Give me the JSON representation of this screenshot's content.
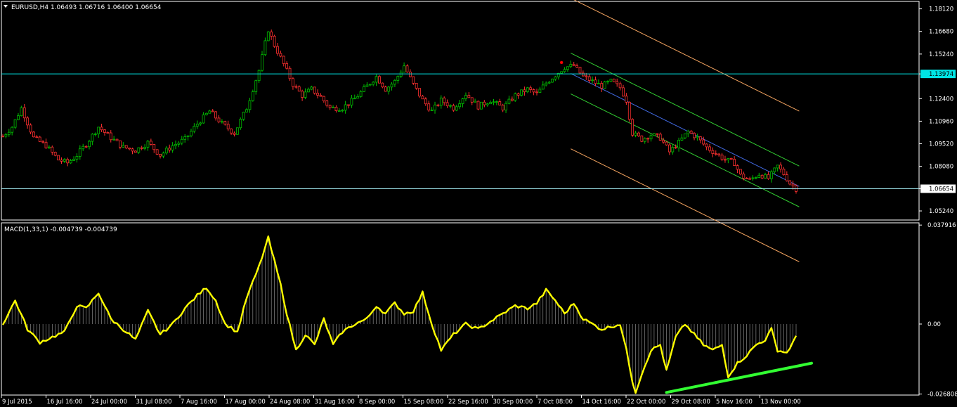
{
  "chart_data": [
    {
      "type": "candlestick",
      "title": "EURUSD,H4 1.06493 1.06716 1.06400 1.06654",
      "ylim": [
        1.0466,
        1.1855
      ],
      "y_ticks": [
        "1.18120",
        "1.16680",
        "1.15240",
        "1.13974",
        "1.12400",
        "1.10960",
        "1.09520",
        "1.08080",
        "1.06654",
        "1.05240"
      ],
      "price_levels": {
        "resistance": 1.13974,
        "last": 1.06654
      },
      "highlight_labels": [
        "1.13974",
        "1.06654"
      ],
      "x_ticks": [
        "9 Jul 2015",
        "16 Jul 16:00",
        "24 Jul 00:00",
        "31 Jul 08:00",
        "7 Aug 16:00",
        "17 Aug 00:00",
        "24 Aug 08:00",
        "31 Aug 16:00",
        "8 Sep 00:00",
        "15 Sep 08:00",
        "22 Sep 16:00",
        "30 Sep 00:00",
        "7 Oct 08:00",
        "14 Oct 16:00",
        "22 Oct 00:00",
        "29 Oct 08:00",
        "5 Nov 16:00",
        "13 Nov 00:00"
      ],
      "close_path": [
        [
          0,
          1.1
        ],
        [
          3,
          1.106
        ],
        [
          6,
          1.118
        ],
        [
          10,
          1.099
        ],
        [
          14,
          1.094
        ],
        [
          18,
          1.085
        ],
        [
          21,
          1.083
        ],
        [
          24,
          1.088
        ],
        [
          27,
          1.095
        ],
        [
          31,
          1.106
        ],
        [
          35,
          1.099
        ],
        [
          39,
          1.093
        ],
        [
          43,
          1.091
        ],
        [
          47,
          1.096
        ],
        [
          51,
          1.088
        ],
        [
          55,
          1.094
        ],
        [
          59,
          1.098
        ],
        [
          63,
          1.108
        ],
        [
          67,
          1.116
        ],
        [
          71,
          1.108
        ],
        [
          75,
          1.102
        ],
        [
          79,
          1.118
        ],
        [
          83,
          1.142
        ],
        [
          86,
          1.168
        ],
        [
          88,
          1.158
        ],
        [
          91,
          1.146
        ],
        [
          94,
          1.133
        ],
        [
          97,
          1.126
        ],
        [
          100,
          1.13
        ],
        [
          103,
          1.125
        ],
        [
          106,
          1.118
        ],
        [
          110,
          1.118
        ],
        [
          114,
          1.124
        ],
        [
          118,
          1.132
        ],
        [
          121,
          1.138
        ],
        [
          124,
          1.13
        ],
        [
          127,
          1.135
        ],
        [
          130,
          1.145
        ],
        [
          133,
          1.133
        ],
        [
          136,
          1.123
        ],
        [
          139,
          1.116
        ],
        [
          142,
          1.123
        ],
        [
          146,
          1.118
        ],
        [
          150,
          1.127
        ],
        [
          154,
          1.119
        ],
        [
          158,
          1.123
        ],
        [
          162,
          1.118
        ],
        [
          166,
          1.126
        ],
        [
          170,
          1.13
        ],
        [
          173,
          1.127
        ],
        [
          176,
          1.134
        ],
        [
          179,
          1.139
        ],
        [
          182,
          1.144
        ],
        [
          185,
          1.145
        ],
        [
          188,
          1.138
        ],
        [
          191,
          1.135
        ],
        [
          194,
          1.132
        ],
        [
          197,
          1.135
        ],
        [
          200,
          1.131
        ],
        [
          202,
          1.123
        ],
        [
          204,
          1.102
        ],
        [
          207,
          1.098
        ],
        [
          210,
          1.101
        ],
        [
          213,
          1.099
        ],
        [
          216,
          1.09
        ],
        [
          219,
          1.096
        ],
        [
          222,
          1.103
        ],
        [
          225,
          1.099
        ],
        [
          228,
          1.093
        ],
        [
          231,
          1.089
        ],
        [
          234,
          1.085
        ],
        [
          237,
          1.083
        ],
        [
          239,
          1.075
        ],
        [
          242,
          1.072
        ],
        [
          245,
          1.076
        ],
        [
          248,
          1.073
        ],
        [
          251,
          1.081
        ],
        [
          253,
          1.076
        ],
        [
          255,
          1.07
        ],
        [
          257,
          1.0665
        ]
      ],
      "bars_count": 258,
      "channel": {
        "start_bar": 184,
        "end_bar": 258,
        "start_mid": 1.14,
        "end_mid": 1.068,
        "inner_offset": 0.013,
        "outer_offset": 0.048
      },
      "channel_colors": {
        "inner": "#32cd32",
        "outer": "#f4a460",
        "mid": "#4169e1"
      },
      "marker": {
        "bar": 181,
        "value": 1.147,
        "color": "#ff0000"
      },
      "colors": {
        "bull": "#00c000",
        "bear": "#ff3030",
        "resistance_line": "#00e5e5",
        "last_line": "#9fe7ef",
        "grid": "#ffffff"
      }
    },
    {
      "type": "line",
      "title": "MACD(1,33,1) -0.004739 -0.004739",
      "ylim": [
        -0.0272,
        0.0385
      ],
      "y_ticks": [
        "0.037916",
        "0.00",
        "-0.026808"
      ],
      "series": [
        {
          "values": [
            [
              0,
              0.0
            ],
            [
              4,
              0.009
            ],
            [
              8,
              -0.002
            ],
            [
              12,
              -0.007
            ],
            [
              16,
              -0.005
            ],
            [
              20,
              -0.003
            ],
            [
              24,
              0.007
            ],
            [
              27,
              0.006
            ],
            [
              31,
              0.012
            ],
            [
              35,
              0.002
            ],
            [
              39,
              -0.002
            ],
            [
              43,
              -0.006
            ],
            [
              47,
              0.005
            ],
            [
              51,
              -0.004
            ],
            [
              55,
              0.0
            ],
            [
              59,
              0.006
            ],
            [
              63,
              0.011
            ],
            [
              66,
              0.014
            ],
            [
              69,
              0.009
            ],
            [
              72,
              0.0
            ],
            [
              76,
              -0.003
            ],
            [
              79,
              0.01
            ],
            [
              83,
              0.022
            ],
            [
              86,
              0.033
            ],
            [
              88,
              0.024
            ],
            [
              90,
              0.015
            ],
            [
              92,
              0.004
            ],
            [
              95,
              -0.01
            ],
            [
              98,
              -0.004
            ],
            [
              101,
              -0.008
            ],
            [
              104,
              0.002
            ],
            [
              107,
              -0.008
            ],
            [
              110,
              -0.003
            ],
            [
              114,
              0.0
            ],
            [
              118,
              0.002
            ],
            [
              121,
              0.007
            ],
            [
              124,
              0.004
            ],
            [
              127,
              0.008
            ],
            [
              130,
              0.004
            ],
            [
              133,
              0.005
            ],
            [
              136,
              0.012
            ],
            [
              139,
              0.0
            ],
            [
              142,
              -0.01
            ],
            [
              146,
              -0.004
            ],
            [
              150,
              0.0
            ],
            [
              154,
              -0.002
            ],
            [
              158,
              0.001
            ],
            [
              162,
              0.004
            ],
            [
              166,
              0.007
            ],
            [
              170,
              0.006
            ],
            [
              173,
              0.008
            ],
            [
              176,
              0.013
            ],
            [
              179,
              0.009
            ],
            [
              182,
              0.004
            ],
            [
              185,
              0.008
            ],
            [
              188,
              0.002
            ],
            [
              191,
              0.0
            ],
            [
              194,
              -0.002
            ],
            [
              197,
              -0.001
            ],
            [
              200,
              0.0
            ],
            [
              202,
              -0.01
            ],
            [
              204,
              -0.022
            ],
            [
              205,
              -0.026
            ],
            [
              207,
              -0.019
            ],
            [
              210,
              -0.01
            ],
            [
              213,
              -0.008
            ],
            [
              215,
              -0.018
            ],
            [
              218,
              -0.005
            ],
            [
              221,
              0.0
            ],
            [
              224,
              -0.004
            ],
            [
              227,
              -0.008
            ],
            [
              230,
              -0.01
            ],
            [
              233,
              -0.008
            ],
            [
              235,
              -0.02
            ],
            [
              238,
              -0.015
            ],
            [
              241,
              -0.012
            ],
            [
              244,
              -0.008
            ],
            [
              247,
              -0.006
            ],
            [
              249,
              -0.002
            ],
            [
              251,
              -0.01
            ],
            [
              254,
              -0.011
            ],
            [
              257,
              -0.005
            ]
          ]
        }
      ],
      "divergence_line": {
        "from": [
          215,
          -0.0262
        ],
        "to": [
          262,
          -0.015
        ],
        "color": "#32ff32"
      },
      "colors": {
        "line": "#ffff00",
        "histogram": "#a0a0a0"
      }
    }
  ]
}
